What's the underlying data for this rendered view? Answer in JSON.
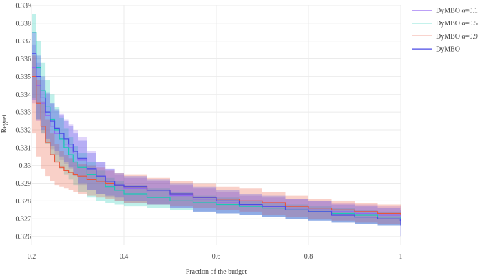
{
  "chart_data": {
    "type": "line",
    "xlabel": "Fraction of the budget",
    "ylabel": "Regret",
    "xlim": [
      0.2,
      1.0
    ],
    "ylim": [
      0.3255,
      0.339
    ],
    "x_ticks": [
      0.2,
      0.4,
      0.6,
      0.8,
      1.0
    ],
    "x_tick_labels": [
      "0.2",
      "0.4",
      "0.6",
      "0.8",
      "1"
    ],
    "y_ticks": [
      0.326,
      0.327,
      0.328,
      0.329,
      0.33,
      0.331,
      0.332,
      0.333,
      0.334,
      0.335,
      0.336,
      0.337,
      0.338,
      0.339
    ],
    "y_tick_labels": [
      "0.326",
      "0.327",
      "0.328",
      "0.329",
      "0.33",
      "0.331",
      "0.332",
      "0.333",
      "0.334",
      "0.335",
      "0.336",
      "0.337",
      "0.338",
      "0.339"
    ],
    "grid": true,
    "legend_position": "top-right",
    "series": [
      {
        "name": "DyMBO α=0.1",
        "color": "#9467f2",
        "x": [
          0.2,
          0.21,
          0.22,
          0.23,
          0.24,
          0.25,
          0.26,
          0.27,
          0.28,
          0.29,
          0.3,
          0.32,
          0.34,
          0.36,
          0.38,
          0.4,
          0.45,
          0.5,
          0.55,
          0.6,
          0.65,
          0.7,
          0.75,
          0.8,
          0.85,
          0.9,
          0.95,
          1.0
        ],
        "y": [
          0.3355,
          0.3345,
          0.3335,
          0.3328,
          0.3322,
          0.3318,
          0.3315,
          0.3312,
          0.331,
          0.3307,
          0.3303,
          0.3298,
          0.3294,
          0.3291,
          0.3289,
          0.3287,
          0.3285,
          0.3283,
          0.3281,
          0.3279,
          0.3278,
          0.3277,
          0.3276,
          0.3275,
          0.3274,
          0.3273,
          0.3272,
          0.3271
        ],
        "lower": [
          0.3345,
          0.3335,
          0.3325,
          0.3318,
          0.3313,
          0.3309,
          0.3306,
          0.3303,
          0.3301,
          0.3298,
          0.3294,
          0.3289,
          0.3286,
          0.3284,
          0.3282,
          0.328,
          0.3279,
          0.3278,
          0.3276,
          0.3274,
          0.3273,
          0.3272,
          0.3271,
          0.327,
          0.3269,
          0.3268,
          0.3267,
          0.3266
        ],
        "upper": [
          0.3368,
          0.3358,
          0.3348,
          0.334,
          0.3335,
          0.3332,
          0.3329,
          0.3326,
          0.3323,
          0.332,
          0.3316,
          0.3308,
          0.3302,
          0.3298,
          0.3295,
          0.3293,
          0.3291,
          0.3289,
          0.3287,
          0.3285,
          0.3283,
          0.3282,
          0.3281,
          0.328,
          0.3279,
          0.3278,
          0.3277,
          0.3276
        ]
      },
      {
        "name": "DyMBO α=0.5",
        "color": "#19c9b4",
        "x": [
          0.2,
          0.21,
          0.22,
          0.23,
          0.24,
          0.25,
          0.26,
          0.27,
          0.28,
          0.29,
          0.3,
          0.32,
          0.34,
          0.36,
          0.38,
          0.4,
          0.45,
          0.5,
          0.55,
          0.6,
          0.65,
          0.7,
          0.75,
          0.8,
          0.85,
          0.9,
          0.95,
          1.0
        ],
        "y": [
          0.3375,
          0.3355,
          0.3342,
          0.3333,
          0.3326,
          0.332,
          0.3315,
          0.331,
          0.3306,
          0.3302,
          0.3299,
          0.3295,
          0.3291,
          0.3288,
          0.3286,
          0.3284,
          0.3282,
          0.328,
          0.3279,
          0.3278,
          0.3277,
          0.3276,
          0.3275,
          0.3274,
          0.3273,
          0.3272,
          0.3271,
          0.327
        ],
        "lower": [
          0.3358,
          0.3338,
          0.3326,
          0.3318,
          0.3312,
          0.3306,
          0.3302,
          0.3298,
          0.3295,
          0.3292,
          0.3289,
          0.3285,
          0.3282,
          0.328,
          0.3279,
          0.3278,
          0.3277,
          0.3276,
          0.3275,
          0.3274,
          0.3273,
          0.3272,
          0.3271,
          0.327,
          0.3269,
          0.3268,
          0.3267,
          0.3266
        ],
        "upper": [
          0.3385,
          0.337,
          0.3358,
          0.3348,
          0.334,
          0.3333,
          0.3327,
          0.3321,
          0.3316,
          0.3311,
          0.3307,
          0.3302,
          0.3297,
          0.3293,
          0.3291,
          0.3289,
          0.3287,
          0.3285,
          0.3283,
          0.3282,
          0.328,
          0.3279,
          0.3278,
          0.3277,
          0.3276,
          0.3275,
          0.3274,
          0.3273
        ]
      },
      {
        "name": "DyMBO α=0.9",
        "color": "#e8553a",
        "x": [
          0.2,
          0.21,
          0.22,
          0.23,
          0.24,
          0.25,
          0.26,
          0.27,
          0.28,
          0.29,
          0.3,
          0.32,
          0.34,
          0.36,
          0.38,
          0.4,
          0.45,
          0.5,
          0.55,
          0.6,
          0.65,
          0.7,
          0.75,
          0.8,
          0.85,
          0.9,
          0.95,
          1.0
        ],
        "y": [
          0.335,
          0.3335,
          0.3322,
          0.3313,
          0.3306,
          0.3302,
          0.3299,
          0.3297,
          0.3296,
          0.3295,
          0.3294,
          0.3292,
          0.3291,
          0.329,
          0.3289,
          0.3288,
          0.3286,
          0.3284,
          0.3282,
          0.3281,
          0.328,
          0.3279,
          0.3277,
          0.3276,
          0.3275,
          0.3274,
          0.3273,
          0.3272
        ],
        "lower": [
          0.3335,
          0.3318,
          0.3305,
          0.3298,
          0.3294,
          0.3291,
          0.3289,
          0.3288,
          0.3287,
          0.3286,
          0.3285,
          0.3284,
          0.3283,
          0.3282,
          0.3281,
          0.328,
          0.3279,
          0.3278,
          0.3277,
          0.3276,
          0.3275,
          0.3274,
          0.3272,
          0.3271,
          0.327,
          0.3269,
          0.3268,
          0.3267
        ],
        "upper": [
          0.3362,
          0.3348,
          0.3336,
          0.3326,
          0.3318,
          0.3312,
          0.3308,
          0.3306,
          0.3304,
          0.3302,
          0.3301,
          0.33,
          0.3299,
          0.3297,
          0.3296,
          0.3295,
          0.3293,
          0.3291,
          0.329,
          0.3288,
          0.3287,
          0.3285,
          0.3283,
          0.3281,
          0.328,
          0.3279,
          0.3278,
          0.3277
        ]
      },
      {
        "name": "DyMBO",
        "color": "#4a4ae6",
        "x": [
          0.2,
          0.21,
          0.22,
          0.23,
          0.24,
          0.25,
          0.26,
          0.27,
          0.28,
          0.29,
          0.3,
          0.32,
          0.34,
          0.36,
          0.38,
          0.4,
          0.45,
          0.5,
          0.55,
          0.6,
          0.65,
          0.7,
          0.75,
          0.8,
          0.85,
          0.9,
          0.95,
          0.999,
          1.0
        ],
        "y": [
          0.3363,
          0.335,
          0.3338,
          0.333,
          0.3325,
          0.3321,
          0.3318,
          0.3315,
          0.3312,
          0.3308,
          0.3304,
          0.3298,
          0.3294,
          0.3291,
          0.3289,
          0.3288,
          0.3286,
          0.3284,
          0.3282,
          0.328,
          0.3278,
          0.3277,
          0.3275,
          0.3274,
          0.3272,
          0.3271,
          0.327,
          0.3269,
          0.3266
        ],
        "lower": [
          0.3348,
          0.3337,
          0.3326,
          0.332,
          0.3315,
          0.3311,
          0.3308,
          0.3305,
          0.3302,
          0.3299,
          0.3295,
          0.329,
          0.3286,
          0.3284,
          0.3283,
          0.3282,
          0.328,
          0.3278,
          0.3276,
          0.3274,
          0.3273,
          0.3272,
          0.3271,
          0.327,
          0.3269,
          0.3268,
          0.3267,
          0.3266,
          0.326
        ],
        "upper": [
          0.3375,
          0.3362,
          0.335,
          0.3341,
          0.3335,
          0.3331,
          0.3328,
          0.3325,
          0.3322,
          0.3318,
          0.3314,
          0.3307,
          0.3302,
          0.3298,
          0.3296,
          0.3294,
          0.3292,
          0.329,
          0.3288,
          0.3286,
          0.3284,
          0.3283,
          0.3281,
          0.328,
          0.3278,
          0.3277,
          0.3276,
          0.3275,
          0.3272
        ]
      }
    ]
  }
}
